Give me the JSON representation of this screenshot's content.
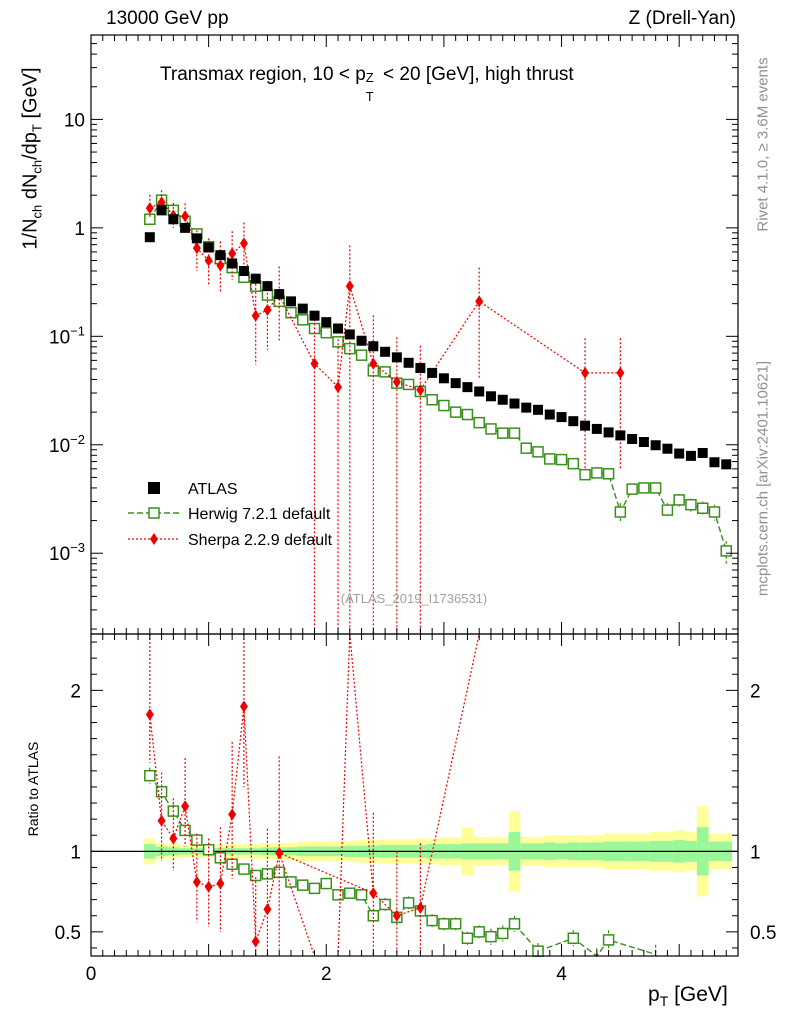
{
  "header": {
    "left": "13000 GeV pp",
    "right": "Z (Drell-Yan)"
  },
  "side_labels": {
    "rivet": "Rivet 4.1.0, ≥ 3.6M events",
    "mcplots": "mcplots.cern.ch [arXiv:2401.10621]"
  },
  "watermark": "(ATLAS_2019_I1736531)",
  "colors": {
    "atlas": "#000000",
    "herwig": "#3a8f1c",
    "sherpa": "#ee0000",
    "band_inner": "#99f799",
    "band_outer": "#ffff99"
  },
  "chart_data": [
    {
      "type": "scatter",
      "panel": "main",
      "title": "Transmax region, 10 < pTZ < 20 [GeV], high thrust",
      "title_parts": {
        "a": "Transmax region, 10 < p",
        "sup": "Z",
        "sub": "T",
        "b": " < 20 [GeV], high thrust"
      },
      "ylabel": "1/N_ch dN_ch/dp_T [GeV]",
      "ylabel_parts": {
        "p1": "1/N",
        "s1": "ch",
        "p2": " dN",
        "s2": "ch",
        "p3": "/dp",
        "s3": "T",
        "p4": " [GeV]"
      },
      "yscale": "log",
      "ylim": [
        0.00018,
        60
      ],
      "xlim": [
        0,
        5.5
      ],
      "y_ticks": [
        {
          "value": 0.001,
          "base": "10",
          "exp": "−3"
        },
        {
          "value": 0.01,
          "base": "10",
          "exp": "−2"
        },
        {
          "value": 0.1,
          "base": "10",
          "exp": "−1"
        },
        {
          "value": 1,
          "base": "1",
          "exp": ""
        },
        {
          "value": 10,
          "base": "10",
          "exp": ""
        }
      ],
      "legend": [
        "ATLAS",
        "Herwig 7.2.1 default",
        "Sherpa 2.2.9 default"
      ],
      "legend_position": "lower-left",
      "series": [
        {
          "name": "ATLAS",
          "x": [
            0.5,
            0.6,
            0.7,
            0.8,
            0.9,
            1.0,
            1.1,
            1.2,
            1.3,
            1.4,
            1.5,
            1.6,
            1.7,
            1.8,
            1.9,
            2.0,
            2.1,
            2.2,
            2.3,
            2.4,
            2.5,
            2.6,
            2.7,
            2.8,
            2.9,
            3.0,
            3.1,
            3.2,
            3.3,
            3.4,
            3.5,
            3.6,
            3.7,
            3.8,
            3.9,
            4.0,
            4.1,
            4.2,
            4.3,
            4.4,
            4.5,
            4.6,
            4.7,
            4.8,
            4.9,
            5.0,
            5.1,
            5.2,
            5.3,
            5.4
          ],
          "values": [
            0.82,
            1.45,
            1.2,
            1.0,
            0.8,
            0.66,
            0.56,
            0.47,
            0.4,
            0.34,
            0.29,
            0.245,
            0.21,
            0.18,
            0.155,
            0.135,
            0.118,
            0.104,
            0.091,
            0.081,
            0.072,
            0.064,
            0.057,
            0.051,
            0.046,
            0.041,
            0.037,
            0.034,
            0.031,
            0.028,
            0.026,
            0.024,
            0.022,
            0.021,
            0.019,
            0.018,
            0.0165,
            0.015,
            0.014,
            0.013,
            0.0122,
            0.0113,
            0.0106,
            0.0099,
            0.0092,
            0.0083,
            0.0079,
            0.0084,
            0.0069,
            0.0066
          ]
        },
        {
          "name": "Herwig 7.2.1 default",
          "x": [
            0.5,
            0.6,
            0.7,
            0.8,
            0.9,
            1.0,
            1.1,
            1.2,
            1.3,
            1.4,
            1.5,
            1.6,
            1.7,
            1.8,
            1.9,
            2.0,
            2.1,
            2.2,
            2.3,
            2.4,
            2.5,
            2.6,
            2.7,
            2.8,
            2.9,
            3.0,
            3.1,
            3.2,
            3.3,
            3.4,
            3.5,
            3.6,
            3.7,
            3.8,
            3.9,
            4.0,
            4.1,
            4.2,
            4.3,
            4.4,
            4.5,
            4.6,
            4.7,
            4.8,
            4.9,
            5.0,
            5.1,
            5.2,
            5.3,
            5.4
          ],
          "values": [
            1.2,
            1.8,
            1.45,
            1.15,
            0.88,
            0.67,
            0.52,
            0.43,
            0.35,
            0.29,
            0.24,
            0.21,
            0.165,
            0.142,
            0.118,
            0.108,
            0.089,
            0.077,
            0.067,
            0.048,
            0.047,
            0.037,
            0.036,
            0.031,
            0.026,
            0.023,
            0.02,
            0.019,
            0.016,
            0.014,
            0.0128,
            0.0128,
            0.0093,
            0.0086,
            0.0074,
            0.0073,
            0.0067,
            0.0053,
            0.0055,
            0.0054,
            0.0024,
            0.0039,
            0.004,
            0.004,
            0.0025,
            0.0031,
            0.0028,
            0.0026,
            0.0024,
            0.00105
          ],
          "errors": [
            0.04,
            0.06,
            0.05,
            0.04,
            0.03,
            0.02,
            0.02,
            0.02,
            0.015,
            0.012,
            0.01,
            0.009,
            0.007,
            0.006,
            0.005,
            0.005,
            0.004,
            0.004,
            0.003,
            0.003,
            0.003,
            0.002,
            0.002,
            0.002,
            0.0015,
            0.0013,
            0.0012,
            0.0011,
            0.001,
            0.0009,
            0.0009,
            0.0009,
            0.0007,
            0.0007,
            0.0006,
            0.0006,
            0.0006,
            0.0005,
            0.0005,
            0.0005,
            0.0005,
            0.0004,
            0.0004,
            0.0004,
            0.0004,
            0.0004,
            0.0004,
            0.0004,
            0.0004,
            0.00025
          ]
        },
        {
          "name": "Sherpa 2.2.9 default",
          "x": [
            0.5,
            0.6,
            0.7,
            0.8,
            0.9,
            1.0,
            1.1,
            1.2,
            1.3,
            1.4,
            1.5,
            1.6,
            1.9,
            2.1,
            2.2,
            2.4,
            2.6,
            2.8,
            3.3,
            4.2,
            4.5
          ],
          "values": [
            1.52,
            1.72,
            1.3,
            1.28,
            0.65,
            0.5,
            0.45,
            0.58,
            0.72,
            0.155,
            0.175,
            0.24,
            0.056,
            0.034,
            0.29,
            0.056,
            0.038,
            0.032,
            0.21,
            0.046,
            0.046
          ],
          "err_lo": [
            0.3,
            0.35,
            0.3,
            0.3,
            0.25,
            0.2,
            0.2,
            0.25,
            0.3,
            0.1,
            0.1,
            0.15,
            0.0559,
            0.0339,
            0.2899,
            0.0559,
            0.0379,
            0.0319,
            0.17,
            0.04,
            0.04
          ],
          "err_hi": [
            0.5,
            0.5,
            0.4,
            0.4,
            0.3,
            0.3,
            0.3,
            0.35,
            0.4,
            0.15,
            0.15,
            0.2,
            0.1,
            0.06,
            0.4,
            0.1,
            0.06,
            0.05,
            0.22,
            0.05,
            0.05
          ]
        }
      ]
    },
    {
      "type": "scatter",
      "panel": "ratio",
      "ylabel": "Ratio to ATLAS",
      "xlabel": "p_T [GeV]",
      "xlabel_parts": {
        "p": "p",
        "sub": "T",
        "rest": " [GeV]"
      },
      "ylim": [
        0.35,
        2.35
      ],
      "xlim": [
        0,
        5.5
      ],
      "y_ticks": [
        0.5,
        1,
        2
      ],
      "y_tick_labels": [
        "0.5",
        "1",
        "2"
      ],
      "x_ticks": [
        0,
        2,
        4
      ],
      "x_tick_labels": [
        "0",
        "2",
        "4"
      ],
      "reference_line": 1,
      "band": {
        "x": [
          0.5,
          0.6,
          0.7,
          0.8,
          0.9,
          1.0,
          1.1,
          1.2,
          1.3,
          1.4,
          1.5,
          1.6,
          1.7,
          1.8,
          1.9,
          2.0,
          2.1,
          2.2,
          2.3,
          2.4,
          2.5,
          2.6,
          2.7,
          2.8,
          2.9,
          3.0,
          3.1,
          3.2,
          3.3,
          3.4,
          3.5,
          3.6,
          3.7,
          3.8,
          3.9,
          4.0,
          4.1,
          4.2,
          4.3,
          4.4,
          4.5,
          4.6,
          4.7,
          4.8,
          4.9,
          5.0,
          5.1,
          5.2,
          5.3,
          5.4
        ],
        "inner": [
          0.045,
          0.03,
          0.025,
          0.02,
          0.02,
          0.02,
          0.02,
          0.02,
          0.02,
          0.02,
          0.025,
          0.025,
          0.025,
          0.03,
          0.03,
          0.03,
          0.03,
          0.035,
          0.035,
          0.035,
          0.04,
          0.04,
          0.04,
          0.04,
          0.045,
          0.045,
          0.045,
          0.05,
          0.05,
          0.05,
          0.05,
          0.12,
          0.05,
          0.05,
          0.055,
          0.05,
          0.055,
          0.055,
          0.055,
          0.06,
          0.06,
          0.06,
          0.06,
          0.065,
          0.065,
          0.07,
          0.065,
          0.15,
          0.06,
          0.06
        ],
        "outer": [
          0.08,
          0.05,
          0.045,
          0.04,
          0.04,
          0.04,
          0.04,
          0.045,
          0.045,
          0.045,
          0.05,
          0.05,
          0.055,
          0.06,
          0.06,
          0.06,
          0.065,
          0.065,
          0.07,
          0.07,
          0.075,
          0.075,
          0.075,
          0.08,
          0.08,
          0.085,
          0.085,
          0.15,
          0.09,
          0.09,
          0.09,
          0.25,
          0.09,
          0.09,
          0.1,
          0.1,
          0.1,
          0.1,
          0.1,
          0.11,
          0.11,
          0.11,
          0.11,
          0.12,
          0.12,
          0.13,
          0.12,
          0.28,
          0.11,
          0.11
        ]
      },
      "series": [
        {
          "name": "Herwig 7.2.1 default",
          "x": [
            0.5,
            0.6,
            0.7,
            0.8,
            0.9,
            1.0,
            1.1,
            1.2,
            1.3,
            1.4,
            1.5,
            1.6,
            1.7,
            1.8,
            1.9,
            2.0,
            2.1,
            2.2,
            2.3,
            2.4,
            2.5,
            2.6,
            2.7,
            2.8,
            2.9,
            3.0,
            3.1,
            3.2,
            3.3,
            3.4,
            3.5,
            3.6,
            3.8,
            4.1,
            4.3,
            4.4,
            4.8
          ],
          "values": [
            1.47,
            1.37,
            1.25,
            1.13,
            1.07,
            1.01,
            0.96,
            0.92,
            0.89,
            0.85,
            0.86,
            0.87,
            0.81,
            0.79,
            0.77,
            0.8,
            0.73,
            0.74,
            0.73,
            0.6,
            0.67,
            0.59,
            0.68,
            0.63,
            0.57,
            0.55,
            0.55,
            0.46,
            0.5,
            0.47,
            0.49,
            0.55,
            0.38,
            0.46,
            0.35,
            0.45,
            0.36
          ],
          "errors": [
            0.05,
            0.04,
            0.04,
            0.03,
            0.03,
            0.03,
            0.03,
            0.03,
            0.03,
            0.03,
            0.03,
            0.03,
            0.03,
            0.03,
            0.03,
            0.03,
            0.03,
            0.03,
            0.03,
            0.03,
            0.04,
            0.04,
            0.04,
            0.04,
            0.04,
            0.04,
            0.04,
            0.04,
            0.04,
            0.05,
            0.05,
            0.05,
            0.05,
            0.05,
            0.05,
            0.06,
            0.06
          ]
        },
        {
          "name": "Sherpa 2.2.9 default",
          "x": [
            0.5,
            0.6,
            0.7,
            0.8,
            0.9,
            1.0,
            1.1,
            1.2,
            1.3,
            1.4,
            1.5,
            1.6,
            2.4,
            2.6,
            2.8
          ],
          "values": [
            1.85,
            1.19,
            1.08,
            1.28,
            0.81,
            0.78,
            0.8,
            1.23,
            1.9,
            0.44,
            0.64,
            0.99,
            0.74,
            0.6,
            0.65
          ],
          "err_lo": [
            0.3,
            0.25,
            0.2,
            0.25,
            0.25,
            0.25,
            0.3,
            0.4,
            0.5,
            0.3,
            0.4,
            0.6,
            0.5,
            0.4,
            0.4
          ],
          "err_hi": [
            0.5,
            0.3,
            0.25,
            0.3,
            0.3,
            0.3,
            0.35,
            0.45,
            0.6,
            0.4,
            0.5,
            0.6,
            0.5,
            0.4,
            0.4
          ],
          "offscale": [
            {
              "from": [
                1.6,
                0.99
              ],
              "to": [
                1.9,
                0.25
              ]
            },
            {
              "from": [
                2.1,
                0.25
              ],
              "to": [
                2.2,
                2.6
              ]
            },
            {
              "from": [
                2.2,
                2.6
              ],
              "to": [
                2.4,
                0.74
              ]
            },
            {
              "from": [
                2.8,
                0.65
              ],
              "to": [
                3.3,
                3.0
              ]
            }
          ]
        }
      ]
    }
  ]
}
